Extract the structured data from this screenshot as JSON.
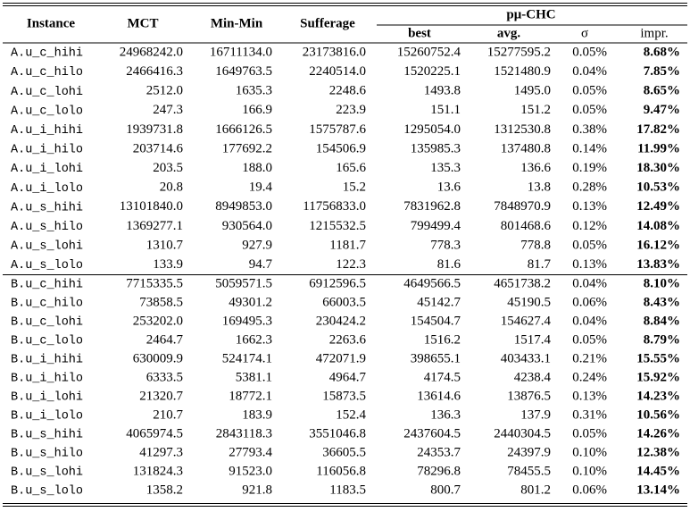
{
  "table": {
    "header": {
      "instance": "Instance",
      "mct": "MCT",
      "minmin": "Min-Min",
      "sufferage": "Sufferage",
      "group": "pμ-CHC",
      "sub": [
        "best",
        "avg.",
        "σ",
        "impr."
      ]
    },
    "groups": [
      [
        [
          "A.u_c_hihi",
          "24968242.0",
          "16711134.0",
          "23173816.0",
          "15260752.4",
          "15277595.2",
          "0.05%",
          "8.68%"
        ],
        [
          "A.u_c_hilo",
          "2466416.3",
          "1649763.5",
          "2240514.0",
          "1520225.1",
          "1521480.9",
          "0.04%",
          "7.85%"
        ],
        [
          "A.u_c_lohi",
          "2512.0",
          "1635.3",
          "2248.6",
          "1493.8",
          "1495.0",
          "0.05%",
          "8.65%"
        ],
        [
          "A.u_c_lolo",
          "247.3",
          "166.9",
          "223.9",
          "151.1",
          "151.2",
          "0.05%",
          "9.47%"
        ],
        [
          "A.u_i_hihi",
          "1939731.8",
          "1666126.5",
          "1575787.6",
          "1295054.0",
          "1312530.8",
          "0.38%",
          "17.82%"
        ],
        [
          "A.u_i_hilo",
          "203714.6",
          "177692.2",
          "154506.9",
          "135985.3",
          "137480.8",
          "0.14%",
          "11.99%"
        ],
        [
          "A.u_i_lohi",
          "203.5",
          "188.0",
          "165.6",
          "135.3",
          "136.6",
          "0.19%",
          "18.30%"
        ],
        [
          "A.u_i_lolo",
          "20.8",
          "19.4",
          "15.2",
          "13.6",
          "13.8",
          "0.28%",
          "10.53%"
        ],
        [
          "A.u_s_hihi",
          "13101840.0",
          "8949853.0",
          "11756833.0",
          "7831962.8",
          "7848970.9",
          "0.13%",
          "12.49%"
        ],
        [
          "A.u_s_hilo",
          "1369277.1",
          "930564.0",
          "1215532.5",
          "799499.4",
          "801468.6",
          "0.12%",
          "14.08%"
        ],
        [
          "A.u_s_lohi",
          "1310.7",
          "927.9",
          "1181.7",
          "778.3",
          "778.8",
          "0.05%",
          "16.12%"
        ],
        [
          "A.u_s_lolo",
          "133.9",
          "94.7",
          "122.3",
          "81.6",
          "81.7",
          "0.13%",
          "13.83%"
        ]
      ],
      [
        [
          "B.u_c_hihi",
          "7715335.5",
          "5059571.5",
          "6912596.5",
          "4649566.5",
          "4651738.2",
          "0.04%",
          "8.10%"
        ],
        [
          "B.u_c_hilo",
          "73858.5",
          "49301.2",
          "66003.5",
          "45142.7",
          "45190.5",
          "0.06%",
          "8.43%"
        ],
        [
          "B.u_c_lohi",
          "253202.0",
          "169495.3",
          "230424.2",
          "154504.7",
          "154627.4",
          "0.04%",
          "8.84%"
        ],
        [
          "B.u_c_lolo",
          "2464.7",
          "1662.3",
          "2263.6",
          "1516.2",
          "1517.4",
          "0.05%",
          "8.79%"
        ],
        [
          "B.u_i_hihi",
          "630009.9",
          "524174.1",
          "472071.9",
          "398655.1",
          "403433.1",
          "0.21%",
          "15.55%"
        ],
        [
          "B.u_i_hilo",
          "6333.5",
          "5381.1",
          "4964.7",
          "4174.5",
          "4238.4",
          "0.24%",
          "15.92%"
        ],
        [
          "B.u_i_lohi",
          "21320.7",
          "18772.1",
          "15873.5",
          "13614.6",
          "13876.5",
          "0.13%",
          "14.23%"
        ],
        [
          "B.u_i_lolo",
          "210.7",
          "183.9",
          "152.4",
          "136.3",
          "137.9",
          "0.31%",
          "10.56%"
        ],
        [
          "B.u_s_hihi",
          "4065974.5",
          "2843118.3",
          "3551046.8",
          "2437604.5",
          "2440304.5",
          "0.05%",
          "14.26%"
        ],
        [
          "B.u_s_hilo",
          "41297.3",
          "27793.4",
          "36605.5",
          "24353.7",
          "24397.9",
          "0.10%",
          "12.38%"
        ],
        [
          "B.u_s_lohi",
          "131824.3",
          "91523.0",
          "116056.8",
          "78296.8",
          "78455.5",
          "0.10%",
          "14.45%"
        ],
        [
          "B.u_s_lolo",
          "1358.2",
          "921.8",
          "1183.5",
          "800.7",
          "801.2",
          "0.06%",
          "13.14%"
        ]
      ]
    ]
  }
}
